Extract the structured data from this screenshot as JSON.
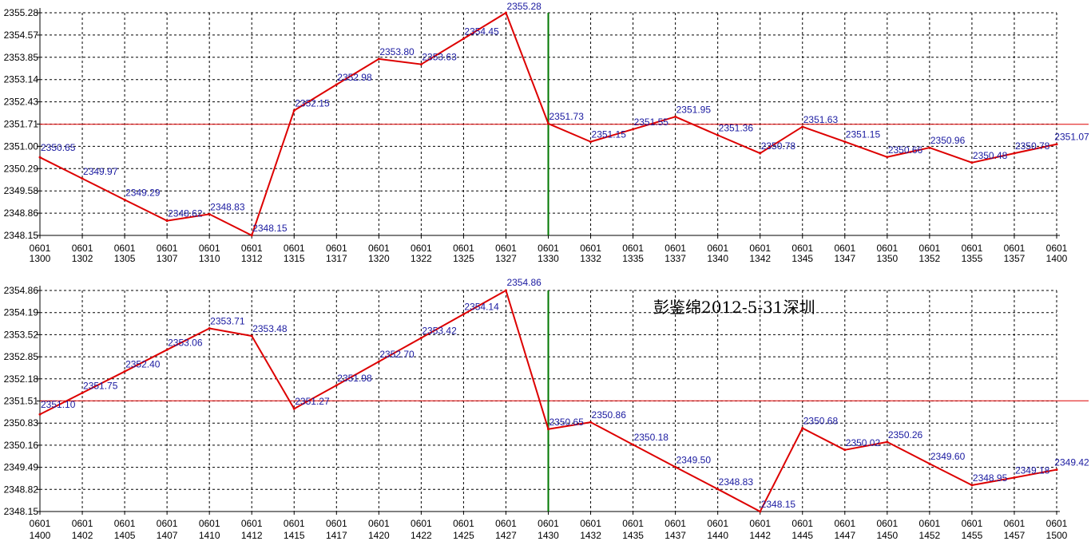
{
  "watermark": "彭鉴绵2012-5-31深圳",
  "colors": {
    "series_line": "#dd0000",
    "reference_line": "#dd0000",
    "marker_line": "#007700",
    "grid": "#000000",
    "data_label": "#1a1aa0",
    "tick_label": "#000000"
  },
  "chart_data": [
    {
      "type": "line",
      "title": "",
      "xlabel": "",
      "ylabel": "",
      "ylim": [
        2348.15,
        2355.28
      ],
      "grid": true,
      "y_ticks": [
        "2355.28",
        "2354.57",
        "2353.85",
        "2353.14",
        "2352.43",
        "2351.71",
        "2351.00",
        "2350.29",
        "2349.58",
        "2348.86",
        "2348.15"
      ],
      "x_ticks": [
        {
          "date": "0601",
          "time": "1300"
        },
        {
          "date": "0601",
          "time": "1302"
        },
        {
          "date": "0601",
          "time": "1305"
        },
        {
          "date": "0601",
          "time": "1307"
        },
        {
          "date": "0601",
          "time": "1310"
        },
        {
          "date": "0601",
          "time": "1312"
        },
        {
          "date": "0601",
          "time": "1315"
        },
        {
          "date": "0601",
          "time": "1317"
        },
        {
          "date": "0601",
          "time": "1320"
        },
        {
          "date": "0601",
          "time": "1322"
        },
        {
          "date": "0601",
          "time": "1325"
        },
        {
          "date": "0601",
          "time": "1327"
        },
        {
          "date": "0601",
          "time": "1330"
        },
        {
          "date": "0601",
          "time": "1332"
        },
        {
          "date": "0601",
          "time": "1335"
        },
        {
          "date": "0601",
          "time": "1337"
        },
        {
          "date": "0601",
          "time": "1340"
        },
        {
          "date": "0601",
          "time": "1342"
        },
        {
          "date": "0601",
          "time": "1345"
        },
        {
          "date": "0601",
          "time": "1347"
        },
        {
          "date": "0601",
          "time": "1350"
        },
        {
          "date": "0601",
          "time": "1352"
        },
        {
          "date": "0601",
          "time": "1355"
        },
        {
          "date": "0601",
          "time": "1357"
        },
        {
          "date": "0601",
          "time": "1400"
        }
      ],
      "reference_value": 2351.71,
      "marker_tick": "1330",
      "points": [
        {
          "t": "1300",
          "y": 2350.65,
          "label": "2350.65"
        },
        {
          "t": "1302",
          "y": 2349.97,
          "label": "2349.97"
        },
        {
          "t": "1305",
          "y": 2349.29,
          "label": "2349.29"
        },
        {
          "t": "1307",
          "y": 2348.62,
          "label": "2348.62"
        },
        {
          "t": "1310",
          "y": 2348.83,
          "label": "2348.83"
        },
        {
          "t": "1312",
          "y": 2348.15,
          "label": "2348.15"
        },
        {
          "t": "1315",
          "y": 2352.15,
          "label": "2352.15"
        },
        {
          "t": "1317",
          "y": 2352.98,
          "label": "2352.98"
        },
        {
          "t": "1320",
          "y": 2353.8,
          "label": "2353.80"
        },
        {
          "t": "1322",
          "y": 2353.63,
          "label": "2353.63"
        },
        {
          "t": "1325",
          "y": 2354.45,
          "label": "2354.45"
        },
        {
          "t": "1327",
          "y": 2355.28,
          "label": "2355.28"
        },
        {
          "t": "1330",
          "y": 2351.73,
          "label": "2351.73"
        },
        {
          "t": "1332",
          "y": 2351.15,
          "label": "2351.15"
        },
        {
          "t": "1335",
          "y": 2351.55,
          "label": "2351.55"
        },
        {
          "t": "1337",
          "y": 2351.95,
          "label": "2351.95"
        },
        {
          "t": "1340",
          "y": 2351.36,
          "label": "2351.36"
        },
        {
          "t": "1342",
          "y": 2350.78,
          "label": "2350.78"
        },
        {
          "t": "1345",
          "y": 2351.63,
          "label": "2351.63"
        },
        {
          "t": "1347",
          "y": 2351.15,
          "label": "2351.15"
        },
        {
          "t": "1350",
          "y": 2350.66,
          "label": "2350.66"
        },
        {
          "t": "1352",
          "y": 2350.96,
          "label": "2350.96"
        },
        {
          "t": "1355",
          "y": 2350.48,
          "label": "2350.48"
        },
        {
          "t": "1357",
          "y": 2350.78,
          "label": "2350.78"
        },
        {
          "t": "1400",
          "y": 2351.07,
          "label": "2351.07"
        }
      ]
    },
    {
      "type": "line",
      "title": "",
      "xlabel": "",
      "ylabel": "",
      "ylim": [
        2348.15,
        2354.86
      ],
      "grid": true,
      "y_ticks": [
        "2354.86",
        "2354.19",
        "2353.52",
        "2352.85",
        "2352.18",
        "2351.51",
        "2350.83",
        "2350.16",
        "2349.49",
        "2348.82",
        "2348.15"
      ],
      "x_ticks": [
        {
          "date": "0601",
          "time": "1400"
        },
        {
          "date": "0601",
          "time": "1402"
        },
        {
          "date": "0601",
          "time": "1405"
        },
        {
          "date": "0601",
          "time": "1407"
        },
        {
          "date": "0601",
          "time": "1410"
        },
        {
          "date": "0601",
          "time": "1412"
        },
        {
          "date": "0601",
          "time": "1415"
        },
        {
          "date": "0601",
          "time": "1417"
        },
        {
          "date": "0601",
          "time": "1420"
        },
        {
          "date": "0601",
          "time": "1422"
        },
        {
          "date": "0601",
          "time": "1425"
        },
        {
          "date": "0601",
          "time": "1427"
        },
        {
          "date": "0601",
          "time": "1430"
        },
        {
          "date": "0601",
          "time": "1432"
        },
        {
          "date": "0601",
          "time": "1435"
        },
        {
          "date": "0601",
          "time": "1437"
        },
        {
          "date": "0601",
          "time": "1440"
        },
        {
          "date": "0601",
          "time": "1442"
        },
        {
          "date": "0601",
          "time": "1445"
        },
        {
          "date": "0601",
          "time": "1447"
        },
        {
          "date": "0601",
          "time": "1450"
        },
        {
          "date": "0601",
          "time": "1452"
        },
        {
          "date": "0601",
          "time": "1455"
        },
        {
          "date": "0601",
          "time": "1457"
        },
        {
          "date": "0601",
          "time": "1500"
        }
      ],
      "reference_value": 2351.51,
      "marker_tick": "1430",
      "points": [
        {
          "t": "1400",
          "y": 2351.1,
          "label": "2351.10"
        },
        {
          "t": "1402",
          "y": 2351.75,
          "label": "2351.75"
        },
        {
          "t": "1405",
          "y": 2352.4,
          "label": "2352.40"
        },
        {
          "t": "1407",
          "y": 2353.06,
          "label": "2353.06"
        },
        {
          "t": "1410",
          "y": 2353.71,
          "label": "2353.71"
        },
        {
          "t": "1412",
          "y": 2353.48,
          "label": "2353.48"
        },
        {
          "t": "1415",
          "y": 2351.27,
          "label": "2351.27"
        },
        {
          "t": "1417",
          "y": 2351.98,
          "label": "2351.98"
        },
        {
          "t": "1420",
          "y": 2352.7,
          "label": "2352.70"
        },
        {
          "t": "1422",
          "y": 2353.42,
          "label": "2353.42"
        },
        {
          "t": "1425",
          "y": 2354.14,
          "label": "2354.14"
        },
        {
          "t": "1427",
          "y": 2354.86,
          "label": "2354.86"
        },
        {
          "t": "1430",
          "y": 2350.65,
          "label": "2350.65"
        },
        {
          "t": "1432",
          "y": 2350.86,
          "label": "2350.86"
        },
        {
          "t": "1435",
          "y": 2350.18,
          "label": "2350.18"
        },
        {
          "t": "1437",
          "y": 2349.5,
          "label": "2349.50"
        },
        {
          "t": "1440",
          "y": 2348.83,
          "label": "2348.83"
        },
        {
          "t": "1442",
          "y": 2348.15,
          "label": "2348.15"
        },
        {
          "t": "1445",
          "y": 2350.68,
          "label": "2350.68"
        },
        {
          "t": "1447",
          "y": 2350.02,
          "label": "2350.02"
        },
        {
          "t": "1450",
          "y": 2350.26,
          "label": "2350.26"
        },
        {
          "t": "1452",
          "y": 2349.6,
          "label": "2349.60"
        },
        {
          "t": "1455",
          "y": 2348.95,
          "label": "2348.95"
        },
        {
          "t": "1457",
          "y": 2349.18,
          "label": "2349.18"
        },
        {
          "t": "1500",
          "y": 2349.42,
          "label": "2349.42"
        }
      ]
    }
  ]
}
